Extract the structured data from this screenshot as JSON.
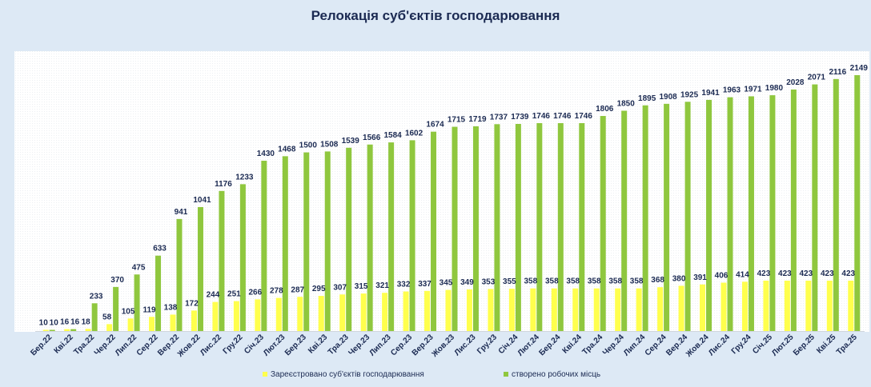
{
  "chart_data": {
    "type": "bar",
    "title": "Релокація суб'єктів господарювання",
    "categories": [
      "Бер.22",
      "Кві.22",
      "Тра.22",
      "Чер.22",
      "Лип.22",
      "Сер.22",
      "Вер.22",
      "Жов.22",
      "Лис.22",
      "Гру.22",
      "Січ.23",
      "Лют.23",
      "Бер.23",
      "Кві.23",
      "Тра.23",
      "Чер.23",
      "Лип.23",
      "Сер.23",
      "Вер.23",
      "Жов.23",
      "Лис.23",
      "Гру.23",
      "Січ.24",
      "Лют.24",
      "Бер.24",
      "Кві.24",
      "Тра.24",
      "Чер.24",
      "Лип.24",
      "Сер.24",
      "Вер.24",
      "Жов.24",
      "Лис.24",
      "Гру.24",
      "Січ.25",
      "Лют.25",
      "Бер.25",
      "Кві.25",
      "Тра.25"
    ],
    "series": [
      {
        "name": "Зареєстровано суб'єктів господарювання",
        "color": "#ffff4d",
        "values": [
          10,
          16,
          18,
          58,
          105,
          119,
          138,
          172,
          244,
          251,
          266,
          278,
          287,
          295,
          307,
          315,
          321,
          332,
          337,
          345,
          349,
          353,
          355,
          358,
          358,
          358,
          358,
          358,
          358,
          368,
          380,
          391,
          406,
          414,
          423,
          423,
          423,
          423,
          423
        ]
      },
      {
        "name": "створено робочих місць",
        "color": "#8fc73e",
        "values": [
          10,
          16,
          233,
          370,
          475,
          633,
          941,
          1041,
          1176,
          1233,
          1430,
          1468,
          1500,
          1508,
          1539,
          1566,
          1584,
          1602,
          1674,
          1715,
          1719,
          1737,
          1739,
          1746,
          1746,
          1746,
          1806,
          1850,
          1895,
          1908,
          1925,
          1941,
          1963,
          1971,
          1980,
          2028,
          2071,
          2116,
          2149
        ]
      }
    ],
    "ylim": [
      0,
      2350
    ],
    "grid": true,
    "legend_position": "bottom"
  }
}
